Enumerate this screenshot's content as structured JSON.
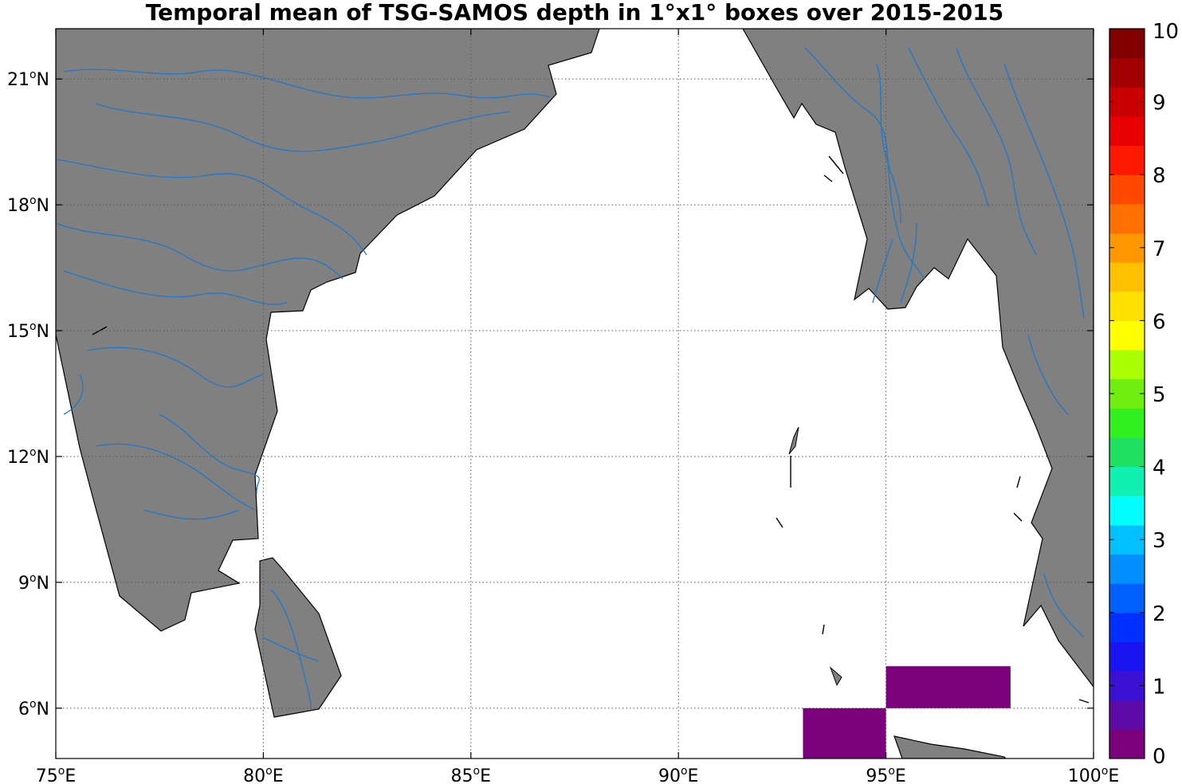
{
  "title": "Temporal mean of TSG-SAMOS depth in 1°x1° boxes over 2015-2015",
  "map": {
    "lon_range": [
      75,
      100
    ],
    "lat_range": [
      4.8,
      22.2
    ],
    "land_color": "#808080",
    "river_color": "#1f78c8",
    "ocean_color": "#ffffff",
    "grid": "dotted",
    "x_ticks": [
      {
        "lon": 75,
        "deg": "75",
        "hemi": "E"
      },
      {
        "lon": 80,
        "deg": "80",
        "hemi": "E"
      },
      {
        "lon": 85,
        "deg": "85",
        "hemi": "E"
      },
      {
        "lon": 90,
        "deg": "90",
        "hemi": "E"
      },
      {
        "lon": 95,
        "deg": "95",
        "hemi": "E"
      },
      {
        "lon": 100,
        "deg": "100",
        "hemi": "E"
      }
    ],
    "y_ticks": [
      {
        "lat": 6,
        "deg": "6",
        "hemi": "N"
      },
      {
        "lat": 9,
        "deg": "9",
        "hemi": "N"
      },
      {
        "lat": 12,
        "deg": "12",
        "hemi": "N"
      },
      {
        "lat": 15,
        "deg": "15",
        "hemi": "N"
      },
      {
        "lat": 18,
        "deg": "18",
        "hemi": "N"
      },
      {
        "lat": 21,
        "deg": "21",
        "hemi": "N"
      }
    ],
    "data_cells": [
      {
        "lon0": 93,
        "lon1": 95,
        "lat0": 4.8,
        "lat1": 6,
        "value": 0.1
      },
      {
        "lon0": 95,
        "lon1": 98,
        "lat0": 6,
        "lat1": 7,
        "value": 0.1
      }
    ]
  },
  "colorbar": {
    "min": 0,
    "max": 10,
    "tick_labels": [
      "0",
      "1",
      "2",
      "3",
      "4",
      "5",
      "6",
      "7",
      "8",
      "9",
      "10"
    ],
    "colors": [
      "#7b007b",
      "#5c0aa8",
      "#3a10d2",
      "#1a14f0",
      "#0030ff",
      "#0060ff",
      "#0090ff",
      "#00c0ff",
      "#00ffff",
      "#10f0b0",
      "#20e060",
      "#30f020",
      "#70ee10",
      "#aaff00",
      "#ffff00",
      "#ffe000",
      "#ffc000",
      "#ff9800",
      "#ff7000",
      "#ff4800",
      "#ff1800",
      "#e80000",
      "#c80000",
      "#a00000",
      "#800000"
    ]
  }
}
